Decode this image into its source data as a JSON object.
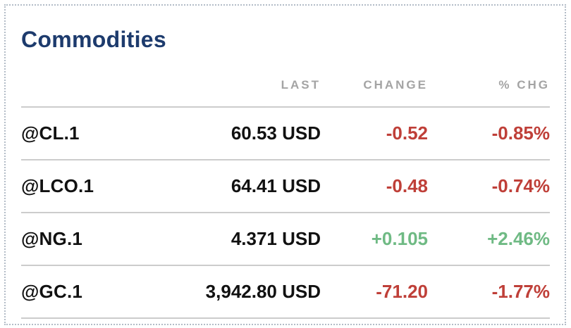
{
  "widget": {
    "title": "Commodities",
    "columns": {
      "last": "LAST",
      "change": "CHANGE",
      "pct_chg": "% CHG"
    },
    "rows": [
      {
        "symbol": "@CL.1",
        "last": "60.53 USD",
        "change": "-0.52",
        "pct_chg": "-0.85%",
        "direction": "down"
      },
      {
        "symbol": "@LCO.1",
        "last": "64.41 USD",
        "change": "-0.48",
        "pct_chg": "-0.74%",
        "direction": "down"
      },
      {
        "symbol": "@NG.1",
        "last": "4.371 USD",
        "change": "+0.105",
        "pct_chg": "+2.46%",
        "direction": "up"
      },
      {
        "symbol": "@GC.1",
        "last": "3,942.80 USD",
        "change": "-71.20",
        "pct_chg": "-1.77%",
        "direction": "down"
      }
    ],
    "colors": {
      "title": "#1d3b6d",
      "column_header": "#a4a4a4",
      "up": "#6fba84",
      "down": "#bf3f38",
      "separator": "#cccccc",
      "dotted_border": "#b3bcc7",
      "text": "#111111"
    }
  }
}
